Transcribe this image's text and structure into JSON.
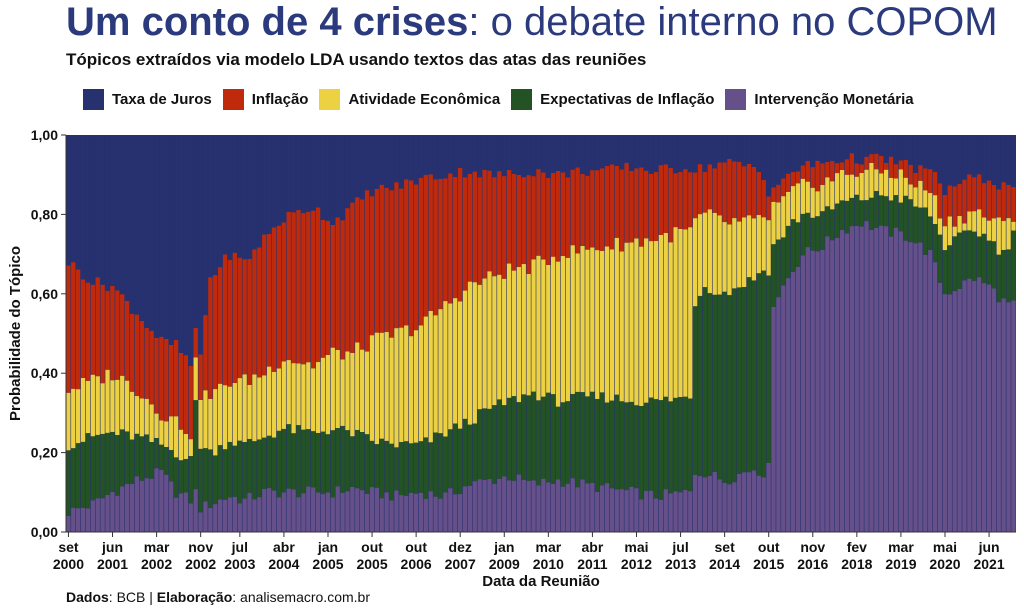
{
  "header": {
    "title_bold": "Um conto de 4 crises",
    "title_rest": ": o debate interno no COPOM",
    "subtitle": "Tópicos extraídos via modelo LDA usando textos das atas das reuniões"
  },
  "legend": [
    {
      "label": "Taxa de Juros",
      "color": "#27316f"
    },
    {
      "label": "Inflação",
      "color": "#bf2a0c"
    },
    {
      "label": "Atividade Econômica",
      "color": "#ecd142"
    },
    {
      "label": "Expectativas de Inflação",
      "color": "#235325"
    },
    {
      "label": "Intervenção Monetária",
      "color": "#65508a"
    }
  ],
  "caption": {
    "dados_label": "Dados",
    "dados_value": ": BCB | ",
    "elab_label": "Elaboração",
    "elab_value": ": analisemacro.com.br"
  },
  "chart_data": {
    "type": "bar",
    "stacked": true,
    "xlabel": "Data da Reunião",
    "ylabel": "Probabilidade do Tópico",
    "ylim": [
      0,
      1
    ],
    "y_ticks": [
      "0,00",
      "0,20",
      "0,40",
      "0,60",
      "0,80",
      "1,00"
    ],
    "x_ticks": [
      {
        "label": "set 2000",
        "index": 0
      },
      {
        "label": "jun 2001",
        "index": 9
      },
      {
        "label": "mar 2002",
        "index": 18
      },
      {
        "label": "nov 2002",
        "index": 27
      },
      {
        "label": "jul 2003",
        "index": 35
      },
      {
        "label": "abr 2004",
        "index": 44
      },
      {
        "label": "jan 2005",
        "index": 53
      },
      {
        "label": "out 2005",
        "index": 62
      },
      {
        "label": "out 2006",
        "index": 71
      },
      {
        "label": "dez 2007",
        "index": 80
      },
      {
        "label": "jan 2009",
        "index": 89
      },
      {
        "label": "mar 2010",
        "index": 98
      },
      {
        "label": "abr 2011",
        "index": 107
      },
      {
        "label": "mai 2012",
        "index": 116
      },
      {
        "label": "jul 2013",
        "index": 125
      },
      {
        "label": "set 2014",
        "index": 134
      },
      {
        "label": "out 2015",
        "index": 143
      },
      {
        "label": "nov 2016",
        "index": 152
      },
      {
        "label": "fev 2018",
        "index": 161
      },
      {
        "label": "mar 2019",
        "index": 170
      },
      {
        "label": "mai 2020",
        "index": 179
      },
      {
        "label": "jun 2021",
        "index": 188
      }
    ],
    "stack_order": [
      "Intervenção Monetária",
      "Expectativas de Inflação",
      "Atividade Econômica",
      "Inflação",
      "Taxa de Juros"
    ],
    "boundary_keyframes": {
      "index": [
        0,
        5,
        9,
        14,
        19,
        22,
        25,
        26,
        27,
        29,
        33,
        36,
        40,
        44,
        50,
        54,
        58,
        62,
        67,
        72,
        77,
        82,
        86,
        90,
        95,
        100,
        105,
        110,
        115,
        120,
        127,
        128,
        130,
        134,
        140,
        142,
        143,
        144,
        146,
        148,
        150,
        154,
        158,
        162,
        166,
        170,
        172,
        176,
        179,
        182,
        185,
        188,
        191,
        193
      ],
      "intervencao": [
        0.05,
        0.07,
        0.1,
        0.13,
        0.15,
        0.1,
        0.08,
        0.1,
        0.06,
        0.07,
        0.09,
        0.08,
        0.1,
        0.1,
        0.1,
        0.1,
        0.11,
        0.1,
        0.09,
        0.1,
        0.09,
        0.12,
        0.13,
        0.14,
        0.12,
        0.13,
        0.12,
        0.11,
        0.1,
        0.09,
        0.1,
        0.15,
        0.15,
        0.13,
        0.16,
        0.15,
        0.16,
        0.58,
        0.62,
        0.66,
        0.7,
        0.72,
        0.76,
        0.78,
        0.76,
        0.75,
        0.74,
        0.7,
        0.6,
        0.62,
        0.64,
        0.62,
        0.58,
        0.57
      ],
      "expectativas": [
        0.22,
        0.24,
        0.25,
        0.24,
        0.22,
        0.2,
        0.18,
        0.33,
        0.22,
        0.2,
        0.23,
        0.22,
        0.24,
        0.26,
        0.25,
        0.26,
        0.25,
        0.23,
        0.22,
        0.22,
        0.25,
        0.28,
        0.31,
        0.33,
        0.35,
        0.33,
        0.34,
        0.34,
        0.33,
        0.33,
        0.34,
        0.58,
        0.62,
        0.6,
        0.64,
        0.66,
        0.66,
        0.72,
        0.75,
        0.78,
        0.8,
        0.8,
        0.83,
        0.84,
        0.85,
        0.84,
        0.83,
        0.8,
        0.72,
        0.74,
        0.76,
        0.74,
        0.7,
        0.75
      ],
      "atividade": [
        0.36,
        0.38,
        0.4,
        0.36,
        0.3,
        0.28,
        0.25,
        0.42,
        0.35,
        0.34,
        0.38,
        0.38,
        0.4,
        0.44,
        0.42,
        0.45,
        0.45,
        0.48,
        0.5,
        0.52,
        0.57,
        0.62,
        0.64,
        0.66,
        0.67,
        0.7,
        0.71,
        0.72,
        0.73,
        0.74,
        0.76,
        0.78,
        0.8,
        0.78,
        0.78,
        0.8,
        0.78,
        0.82,
        0.83,
        0.86,
        0.87,
        0.88,
        0.9,
        0.91,
        0.91,
        0.9,
        0.88,
        0.86,
        0.78,
        0.79,
        0.81,
        0.79,
        0.77,
        0.8
      ],
      "inflacao": [
        0.68,
        0.63,
        0.62,
        0.55,
        0.48,
        0.47,
        0.42,
        0.5,
        0.45,
        0.64,
        0.7,
        0.68,
        0.74,
        0.79,
        0.82,
        0.78,
        0.82,
        0.86,
        0.87,
        0.89,
        0.9,
        0.91,
        0.9,
        0.9,
        0.91,
        0.9,
        0.91,
        0.91,
        0.92,
        0.91,
        0.92,
        0.91,
        0.92,
        0.93,
        0.92,
        0.9,
        0.85,
        0.87,
        0.88,
        0.91,
        0.92,
        0.93,
        0.94,
        0.94,
        0.94,
        0.93,
        0.92,
        0.91,
        0.86,
        0.88,
        0.89,
        0.89,
        0.87,
        0.88
      ]
    }
  }
}
